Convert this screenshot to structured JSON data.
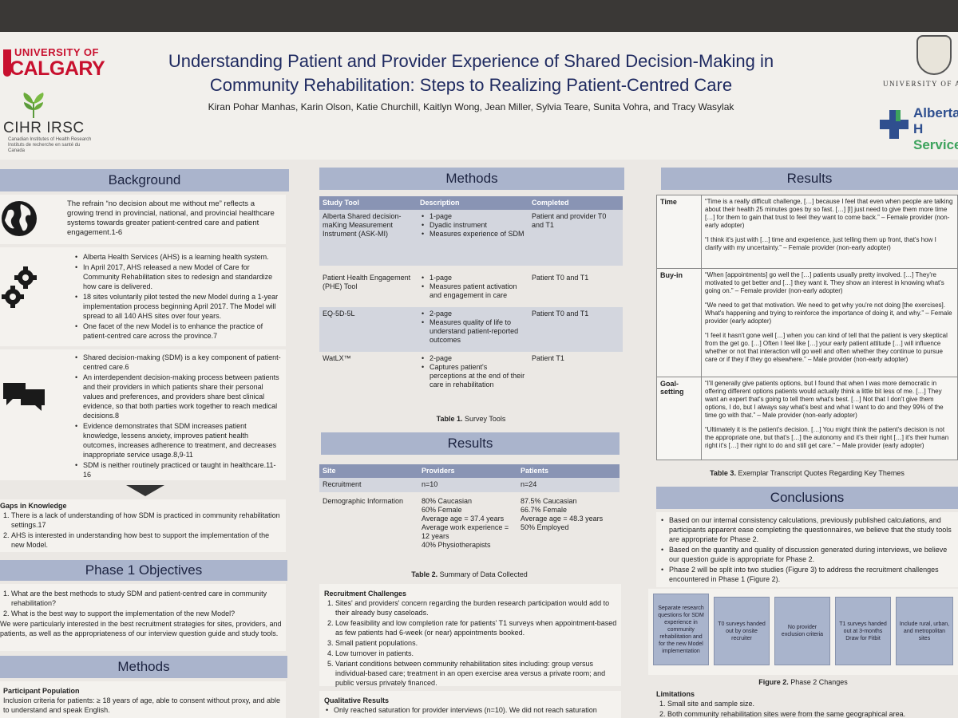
{
  "header": {
    "title_line1": "Understanding Patient and Provider Experience of Shared Decision-Making in",
    "title_line2": "Community Rehabilitation: Steps to Realizing Patient-Centred Care",
    "authors": "Kiran Pohar Manhas, Karin Olson, Katie Churchill, Kaitlyn Wong, Jean Miller, Sylvia Teare, Sunita Vohra, and Tracy Wasylak",
    "logo_uc_small": "UNIVERSITY OF",
    "logo_uc_big": "CALGARY",
    "logo_cihr": "CIHR IRSC",
    "logo_cihr_sub_en": "Canadian Institutes of Health Research",
    "logo_cihr_sub_fr": "Instituts de recherche en santé du Canada",
    "logo_ua": "UNIVERSITY OF AL",
    "logo_ahs_1": "Alberta H",
    "logo_ahs_2": "Services"
  },
  "background": {
    "heading": "Background",
    "intro": "The refrain “no decision about me without me” reflects a growing trend in provincial, national, and provincial healthcare systems towards greater patient-centred care and patient engagement.1-6",
    "bullets_ahs": [
      "Alberta Health Services (AHS) is a learning health system.",
      "In April 2017, AHS released a new Model of Care for Community Rehabilitation sites to redesign and standardize how care is delivered.",
      "18 sites voluntarily pilot tested the new Model during a 1-year implementation process beginning April 2017. The Model will spread to all 140 AHS sites over four years.",
      "One facet of the new Model is to enhance the practice of patient-centred care across the province.7"
    ],
    "bullets_sdm": [
      "Shared decision-making (SDM) is a key component of patient-centred care.6",
      "An interdependent decision-making process between patients and their providers in which patients share their personal values and preferences, and providers share best clinical evidence, so that both parties work together to reach medical decisions.8",
      "Evidence demonstrates that SDM increases patient knowledge, lessens anxiety, improves patient health outcomes, increases adherence to treatment, and decreases inappropriate service usage.8,9-11",
      "SDM is neither routinely practiced or taught in healthcare.11-16"
    ],
    "gaps_title": "Gaps in Knowledge",
    "gaps": [
      "There is a lack of understanding of how SDM is practiced in community rehabilitation settings.17",
      "AHS is interested in understanding how best to support the implementation of the new Model."
    ]
  },
  "phase1": {
    "heading": "Phase 1 Objectives",
    "items": [
      "What are the best methods to study SDM and patient-centred care in community rehabilitation?",
      "What is the best way to support the implementation of the new Model?"
    ],
    "note": "We were particularly interested in the best recruitment strategies for sites, providers, and patients, as well as the appropriateness of our interview question guide and study tools."
  },
  "methods_left": {
    "heading": "Methods",
    "pop_title": "Participant Population",
    "pop_text": "Inclusion criteria for patients: ≥ 18 years of age, able to consent without proxy, and able to understand and speak English."
  },
  "methods_mid": {
    "heading": "Methods",
    "table_headers": [
      "Study Tool",
      "Description",
      "Completed"
    ],
    "rows": [
      {
        "tool": "Alberta Shared decision-maKing Measurement Instrument (ASK-MI)",
        "desc": [
          "1-page",
          "Dyadic instrument",
          "Measures experience of SDM"
        ],
        "completed": "Patient and provider T0 and T1"
      },
      {
        "tool": "Patient Health Engagement (PHE) Tool",
        "desc": [
          "1-page",
          "Measures patient activation and engagement in care"
        ],
        "completed": "Patient T0 and T1"
      },
      {
        "tool": "EQ-5D-5L",
        "desc": [
          "2-page",
          "Measures quality of life to understand patient-reported outcomes"
        ],
        "completed": "Patient T0 and T1"
      },
      {
        "tool": "WatLX™",
        "desc": [
          "2-page",
          "Captures patient's perceptions at the end of their care in rehabilitation"
        ],
        "completed": "Patient T1"
      }
    ],
    "caption_bold": "Table 1.",
    "caption": "Survey Tools"
  },
  "results_mid": {
    "heading": "Results",
    "table_headers": [
      "Site",
      "Providers",
      "Patients"
    ],
    "recruit_label": "Recruitment",
    "recruit_providers": "n=10",
    "recruit_patients": "n=24",
    "demo_label": "Demographic Information",
    "demo_providers": [
      "80% Caucasian",
      "60% Female",
      "Average age = 37.4 years",
      "Average work experience = 12 years",
      "40% Physiotherapists"
    ],
    "demo_patients": [
      "87.5% Caucasian",
      "66.7% Female",
      "Average age = 48.3 years",
      "50% Employed"
    ],
    "caption_bold": "Table 2.",
    "caption": "Summary of Data Collected",
    "challenges_title": "Recruitment Challenges",
    "challenges": [
      "Sites' and providers' concern regarding the burden research participation would add to their already busy caseloads.",
      "Low feasibility and low completion rate for patients' T1 surveys when appointment-based as few patients had 6-week (or near) appointments booked.",
      "Small patient populations.",
      "Low turnover in patients.",
      "Variant conditions between community rehabilitation sites including: group versus individual-based care; treatment in an open exercise area versus a private room; and public versus privately financed."
    ],
    "qual_title": "Qualitative Results",
    "qual_bullet": "Only reached saturation for provider interviews (n=10). We did not reach saturation"
  },
  "results_right": {
    "heading": "Results",
    "rows": [
      {
        "label": "Time",
        "quotes": [
          "“Time is a really difficult challenge, […] because I feel that even when people are talking about their health 25 minutes goes by so fast. […] [I] just need to give them more time […] for them to gain that trust to feel they want to come back.” – Female provider (non-early adopter)",
          "“I think it's just with […] time and experience, just telling them up front, that's how I clarify with my uncertainty.” – Female provider (non-early adopter)"
        ]
      },
      {
        "label": "Buy-in",
        "quotes": [
          "“When [appointments] go well the […] patients usually pretty involved. […] They're motivated to get better and […] they want it. They show an interest in knowing what's going on.” – Female provider (non-early adopter)",
          "“We need to get that motivation. We need to get why you're not doing [the exercises]. What's happening and trying to reinforce the importance of doing it, and why.” – Female provider (early adopter)",
          "“I feel it hasn't gone well […] when you can kind of tell that the patient is very skeptical from the get go. […] Often I feel like […] your early patient attitude […] will influence whether or not that interaction will go well and often whether they continue to pursue care or if they if they go elsewhere.” – Male provider (non-early adopter)"
        ]
      },
      {
        "label": "Goal-setting",
        "quotes": [
          "“I'll generally give patients options, but I found that when I was more democratic in offering different options patients would actually think a little bit less of me. […] They want an expert that's going to tell them what's best. […] Not that I don't give them options, I do, but I always say what's best and what I want to do and they 99% of the time go with that.” – Male provider (non-early adopter)",
          "“Ultimately it is the patient's decision. […] You might think the patient's decision is not the appropriate one, but that's […] the autonomy and it's their right […] it's their human right it's […] their right to do and still get care.” – Male provider (early adopter)"
        ]
      }
    ],
    "caption_bold": "Table 3.",
    "caption": "Exemplar Transcript Quotes Regarding Key Themes"
  },
  "conclusions": {
    "heading": "Conclusions",
    "bullets": [
      "Based on our internal consistency calculations, previously published calculations, and participants apparent ease completing the questionnaires, we believe that the study tools are appropriate for Phase 2.",
      "Based on the quantity and quality of discussion generated during interviews, we believe our question guide is appropriate for Phase 2.",
      "Phase 2 will be split into two studies (Figure 3) to address the recruitment challenges encountered in Phase 1 (Figure 2)."
    ],
    "boxes": [
      "Separate research questions for SDM experience in community rehabilitation and for the new Model implementation",
      "T0 surveys handed out by onsite recruiter",
      "No provider exclusion criteria",
      "T1 surveys handed out at 3-months Draw for Fitbit",
      "Include rural, urban, and metropolitan sites"
    ],
    "fig_caption_bold": "Figure 2.",
    "fig_caption": "Phase 2 Changes",
    "limits_title": "Limitations",
    "limits": [
      "Small site and sample size.",
      "Both community rehabilitation sites were from the same geographical area."
    ]
  },
  "icons": [
    "globe-icon",
    "gears-icon",
    "chat-bubbles-icon",
    "arrow-down-icon",
    "cihr-leaf-icon",
    "ua-crest-icon",
    "ahs-cross-icon"
  ]
}
